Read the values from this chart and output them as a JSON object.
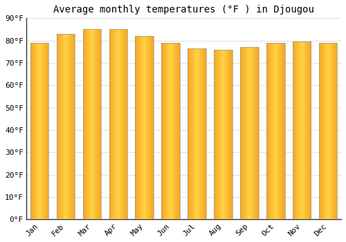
{
  "title": "Average monthly temperatures (°F ) in Djougou",
  "months": [
    "Jan",
    "Feb",
    "Mar",
    "Apr",
    "May",
    "Jun",
    "Jul",
    "Aug",
    "Sep",
    "Oct",
    "Nov",
    "Dec"
  ],
  "values": [
    79,
    83,
    85,
    85,
    82,
    79,
    76.5,
    76,
    77,
    79,
    79.5,
    79
  ],
  "bar_color_left": "#F5A623",
  "bar_color_center": "#FFD044",
  "bar_color_right": "#F5A623",
  "bar_edge_color": "#999999",
  "background_color": "#FFFFFF",
  "grid_color": "#E0E0E0",
  "ylim": [
    0,
    90
  ],
  "yticks": [
    0,
    10,
    20,
    30,
    40,
    50,
    60,
    70,
    80,
    90
  ],
  "title_fontsize": 10,
  "tick_fontsize": 8,
  "bar_width": 0.7,
  "n_grad": 50
}
